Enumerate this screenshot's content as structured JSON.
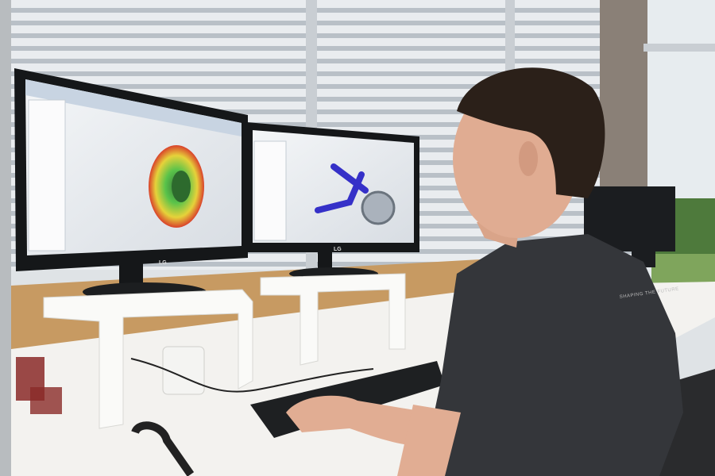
{
  "monitors": [
    {
      "brand": "LG"
    },
    {
      "brand": "LG"
    }
  ],
  "shirt_text": "SHAPING THE FUTURE"
}
